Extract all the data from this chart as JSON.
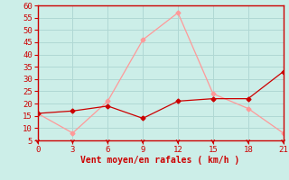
{
  "x": [
    0,
    3,
    6,
    9,
    12,
    15,
    18,
    21
  ],
  "y_rafales": [
    16,
    8,
    21,
    46,
    57,
    24,
    18,
    8
  ],
  "y_moyen": [
    16,
    17,
    19,
    14,
    21,
    22,
    22,
    33
  ],
  "xlabel": "Vent moyen/en rafales ( km/h )",
  "ylim": [
    5,
    60
  ],
  "xlim": [
    0,
    21
  ],
  "yticks": [
    5,
    10,
    15,
    20,
    25,
    30,
    35,
    40,
    45,
    50,
    55,
    60
  ],
  "xticks": [
    0,
    3,
    6,
    9,
    12,
    15,
    18,
    21
  ],
  "bg_color": "#cceee8",
  "grid_color": "#b0d8d4",
  "line_color_rafales": "#ff9999",
  "line_color_moyen": "#cc0000",
  "axis_color": "#cc0000",
  "tick_label_color": "#cc0000",
  "xlabel_color": "#cc0000"
}
